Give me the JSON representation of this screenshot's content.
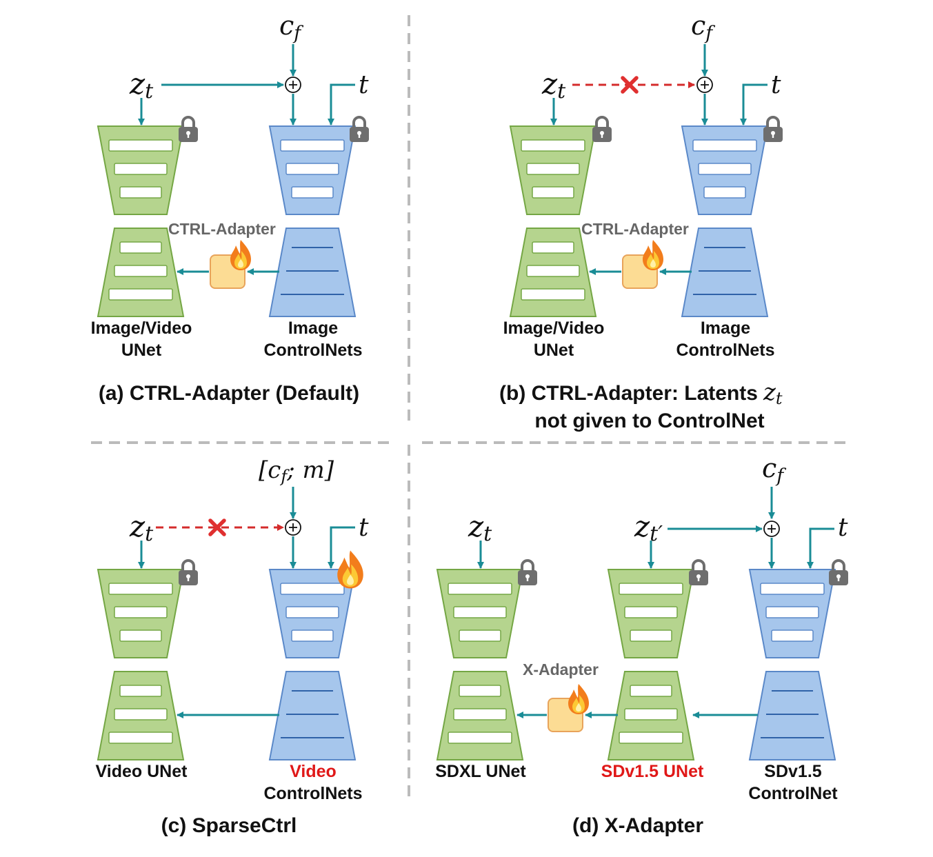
{
  "panels": {
    "a": {
      "caption": "(a) CTRL-Adapter (Default)",
      "adapter_label": "CTRL-Adapter",
      "left_label": [
        "Image/Video",
        "UNet"
      ],
      "right_label": [
        "Image",
        "ControlNets"
      ],
      "z": "z",
      "z_sub": "t",
      "cond": "c",
      "cond_sub": "f",
      "t": "t"
    },
    "b": {
      "caption_line1": "(b) CTRL-Adapter: Latents",
      "caption_var": "z",
      "caption_var_sub": "t",
      "caption_line2": "not given to ControlNet",
      "adapter_label": "CTRL-Adapter",
      "left_label": [
        "Image/Video",
        "UNet"
      ],
      "right_label": [
        "Image",
        "ControlNets"
      ],
      "z": "z",
      "z_sub": "t",
      "cond": "c",
      "cond_sub": "f",
      "t": "t"
    },
    "c": {
      "caption": "(c) SparseCtrl",
      "left_label": [
        "Video UNet"
      ],
      "right_label_red": "Video",
      "right_label": "ControlNets",
      "z": "z",
      "z_sub": "t",
      "cond_open": "[c",
      "cond_sub": "f",
      "cond_rest": "; m]",
      "t": "t"
    },
    "d": {
      "caption": "(d) X-Adapter",
      "adapter_label": "X-Adapter",
      "left_label": "SDXL UNet",
      "mid_label": "SDv1.5 UNet",
      "right_label": [
        "SDv1.5",
        "ControlNet"
      ],
      "z": "z",
      "z_sub": "t",
      "z2": "z",
      "z2_sub": "t′",
      "cond": "c",
      "cond_sub": "f",
      "t": "t"
    }
  },
  "colors": {
    "green_fill": "#b5d48e",
    "green_stroke": "#74a644",
    "blue_fill": "#a6c6ec",
    "blue_stroke": "#5a88c8",
    "arrow": "#1a8c96",
    "dashed_red": "#d42b2b",
    "adapter_fill": "#fcdc94",
    "adapter_stroke": "#e8a35a",
    "divider": "#bbbbbb",
    "lock": "#6e6e6e",
    "label_red": "#e01818"
  },
  "icons": [
    "lock-icon",
    "fire-icon",
    "cross-icon",
    "plus-circle-icon"
  ]
}
